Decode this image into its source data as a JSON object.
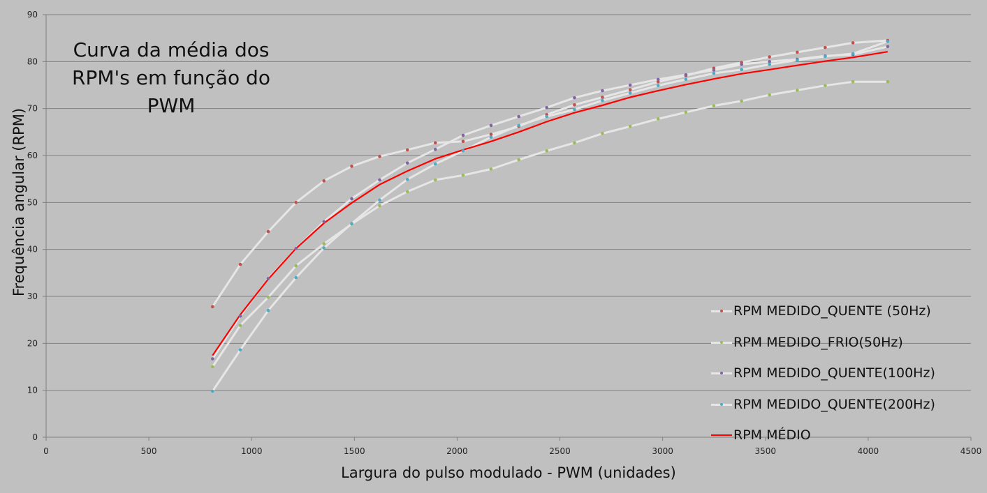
{
  "chart_data": {
    "type": "line",
    "title": "Curva da média dos RPM's em função do PWM",
    "title_lines": [
      "Curva da média dos",
      "RPM's em função do",
      "PWM"
    ],
    "xlabel": "Largura do pulso modulado - PWM (unidades)",
    "ylabel": "Frequência angular (RPM)",
    "xlim": [
      0,
      4500
    ],
    "ylim": [
      0,
      90
    ],
    "xticks": [
      0,
      500,
      1000,
      1500,
      2000,
      2500,
      3000,
      3500,
      4000,
      4500
    ],
    "yticks": [
      0,
      10,
      20,
      30,
      40,
      50,
      60,
      70,
      80,
      90
    ],
    "grid": "horizontal",
    "legend_position": "bottom-right",
    "x": [
      810,
      945,
      1081,
      1216,
      1352,
      1487,
      1623,
      1758,
      1894,
      2029,
      2165,
      2300,
      2436,
      2571,
      2707,
      2842,
      2978,
      3113,
      3249,
      3384,
      3520,
      3655,
      3791,
      3926,
      4095
    ],
    "series": [
      {
        "name": "RPM MEDIDO_QUENTE (50Hz)",
        "line_color": "#e6e6e6",
        "marker_color": "#c0504d",
        "values": [
          27.8,
          36.8,
          43.8,
          50.0,
          54.6,
          57.7,
          59.8,
          61.2,
          62.7,
          63.0,
          64.5,
          66.2,
          68.7,
          70.8,
          72.4,
          74.0,
          75.7,
          77.0,
          78.6,
          79.8,
          81.0,
          82.0,
          83.0,
          84.0,
          84.5
        ]
      },
      {
        "name": "RPM MEDIDO_FRIO(50Hz)",
        "line_color": "#e6e6e6",
        "marker_color": "#9bbb59",
        "values": [
          15.0,
          23.8,
          29.8,
          36.5,
          41.2,
          45.4,
          49.3,
          52.3,
          54.8,
          55.8,
          57.1,
          59.1,
          61.0,
          62.7,
          64.7,
          66.2,
          67.8,
          69.2,
          70.6,
          71.6,
          72.9,
          73.9,
          74.9,
          75.7,
          75.7
        ]
      },
      {
        "name": "RPM MEDIDO_QUENTE(100Hz)",
        "line_color": "#e6e6e6",
        "marker_color": "#8064a2",
        "values": [
          16.7,
          25.8,
          33.8,
          40.2,
          45.9,
          50.8,
          54.8,
          58.4,
          61.3,
          64.3,
          66.4,
          68.3,
          70.2,
          72.3,
          73.8,
          75.0,
          76.2,
          77.2,
          78.2,
          79.4,
          80.0,
          80.5,
          81.2,
          81.5,
          83.2
        ]
      },
      {
        "name": "RPM MEDIDO_QUENTE(200Hz)",
        "line_color": "#e6e6e6",
        "marker_color": "#4bacc6",
        "values": [
          9.8,
          18.6,
          27.0,
          34.0,
          40.3,
          45.5,
          50.5,
          54.9,
          58.2,
          61.0,
          63.9,
          66.4,
          68.3,
          69.8,
          71.7,
          73.3,
          74.9,
          76.2,
          77.5,
          78.3,
          79.4,
          80.3,
          81.1,
          81.7,
          84.3
        ]
      },
      {
        "name": "RPM MÉDIO",
        "line_color": "#ff0000",
        "marker_color": null,
        "values": [
          17.4,
          26.1,
          33.7,
          40.2,
          45.6,
          49.9,
          53.8,
          56.7,
          59.3,
          61.2,
          63.0,
          65.0,
          67.2,
          69.1,
          70.7,
          72.4,
          73.8,
          75.1,
          76.3,
          77.4,
          78.3,
          79.2,
          80.1,
          80.9,
          82.1
        ]
      }
    ]
  }
}
